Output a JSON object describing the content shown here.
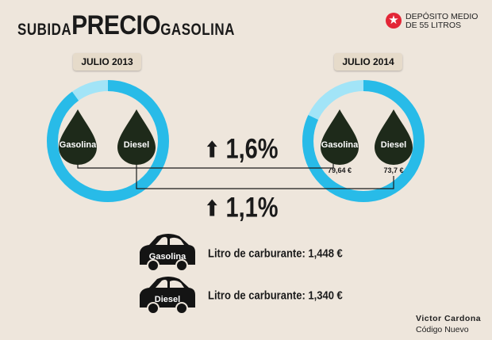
{
  "title": {
    "part1": "SUBIDA",
    "part2": "PRECIO",
    "part3": "GASOLINA"
  },
  "note": {
    "icon": "star-icon",
    "text": "DEPÓSITO MEDIO DE 55 LITROS",
    "icon_color": "#e32636"
  },
  "left": {
    "year_label": "JULIO 2013",
    "gasolina": "Gasolina",
    "diesel": "Diesel"
  },
  "right": {
    "year_label": "JULIO 2014",
    "gasolina": "Gasolina",
    "diesel": "Diesel",
    "gasolina_price": "79,64 €",
    "diesel_price": "73,7 €"
  },
  "increase_gasolina": "1,6%",
  "increase_diesel": "1,1%",
  "cars": [
    {
      "label": "Gasolina",
      "text": "Litro de carburante: 1,448 €"
    },
    {
      "label": "Diesel",
      "text": "Litro de carburante: 1,340 €"
    }
  ],
  "credit": {
    "name": "Victor Cardona",
    "org": "Código Nuevo"
  },
  "colors": {
    "ring_dark": "#28bbe8",
    "ring_light": "#a2e4f7",
    "drop": "#1e2a1a",
    "background": "#eee6dc"
  },
  "ring_fill": {
    "left": 0.9,
    "right": 0.82
  }
}
